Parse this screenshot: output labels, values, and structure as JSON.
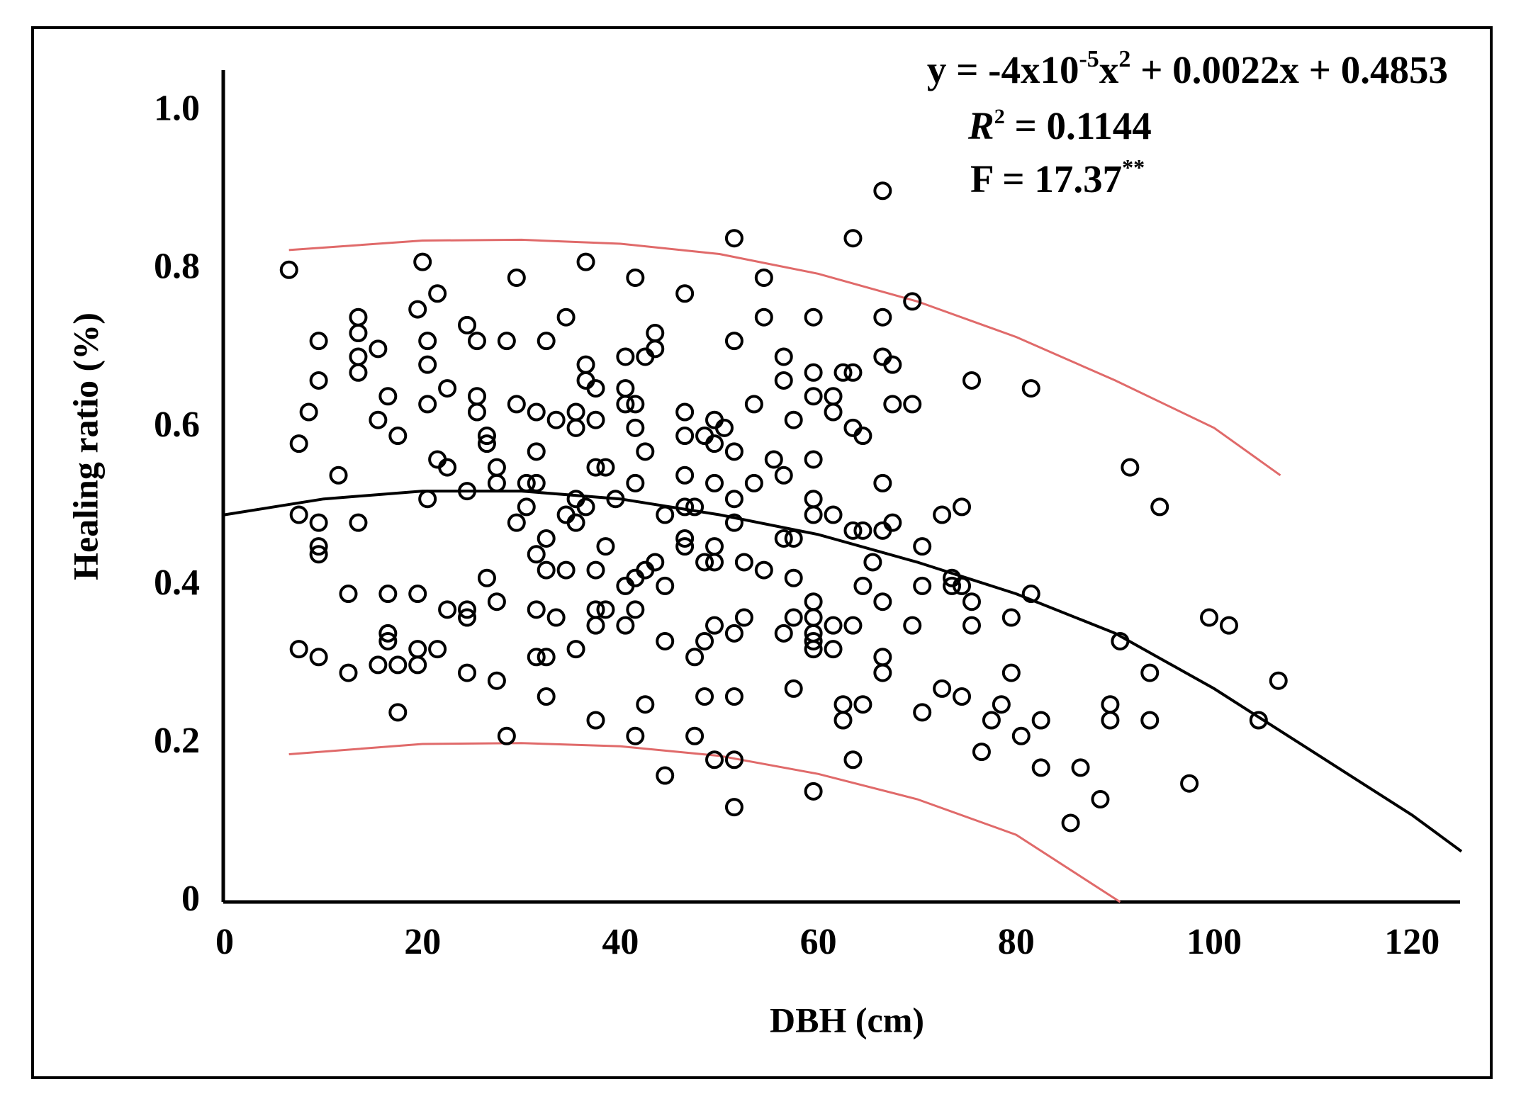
{
  "chart_data": {
    "type": "scatter",
    "x_label": "DBH (cm)",
    "y_label": "Healing ratio (%)",
    "equation": [
      "y = -4x10",
      "-5",
      "x",
      "2",
      " + 0.0022x + 0.4853"
    ],
    "r_squared": [
      "R",
      "2",
      " = 0.1144"
    ],
    "f_test": [
      "F = 17.37",
      "**"
    ],
    "xlim": [
      0,
      125
    ],
    "ylim": [
      0,
      1.05
    ],
    "xticks": [
      0,
      20,
      40,
      60,
      80,
      100,
      120
    ],
    "yticks": [
      0,
      0.2,
      0.4,
      0.6,
      0.8,
      {
        "value": 1,
        "label": "1.0"
      }
    ],
    "points": {
      "color": "#000000",
      "x": [
        6.5,
        7.5,
        7.5,
        7.5,
        8.5,
        9.5,
        9.5,
        9.5,
        9.5,
        9.5,
        9.5,
        11.5,
        12.5,
        12.5,
        13.5,
        13.5,
        13.5,
        13.5,
        13.5,
        15.5,
        15.5,
        15.5,
        16.5,
        16.5,
        16.5,
        16.5,
        17.5,
        17.5,
        17.5,
        19.5,
        19.5,
        19.5,
        19.5,
        20,
        20.5,
        20.5,
        20.5,
        20.5,
        21.5,
        21.5,
        21.5,
        22.5,
        22.5,
        22.5,
        24.5,
        24.5,
        24.5,
        24.5,
        24.5,
        25.5,
        25.5,
        25.5,
        26.5,
        26.5,
        26.5,
        27.5,
        27.5,
        27.5,
        27.5,
        28.5,
        28.5,
        29.5,
        29.5,
        29.5,
        30.5,
        30.5,
        31.5,
        31.5,
        31.5,
        31.5,
        31.5,
        31.5,
        32.5,
        32.5,
        32.5,
        32.5,
        32.5,
        33.5,
        33.5,
        34.5,
        34.5,
        34.5,
        35.5,
        35.5,
        35.5,
        35.5,
        35.5,
        36.5,
        36.5,
        36.5,
        36.5,
        37.5,
        37.5,
        37.5,
        37.5,
        37.5,
        37.5,
        37.5,
        38.5,
        38.5,
        38.5,
        39.5,
        40.5,
        40.5,
        40.5,
        40.5,
        40.5,
        41.5,
        41.5,
        41.5,
        41.5,
        41.5,
        41.5,
        41.5,
        42.5,
        42.5,
        42.5,
        42.5,
        43.5,
        43.5,
        43.5,
        44.5,
        44.5,
        44.5,
        44.5,
        46.5,
        46.5,
        46.5,
        46.5,
        46.5,
        46.5,
        46.5,
        47.5,
        47.5,
        47.5,
        48.5,
        48.5,
        48.5,
        48.5,
        49.5,
        49.5,
        49.5,
        49.5,
        49.5,
        49.5,
        49.5,
        50.5,
        51.5,
        51.5,
        51.5,
        51.5,
        51.5,
        51.5,
        51.5,
        51.5,
        51.5,
        52.5,
        52.5,
        53.5,
        53.5,
        54.5,
        54.5,
        54.5,
        55.5,
        56.5,
        56.5,
        56.5,
        56.5,
        56.5,
        57.5,
        57.5,
        57.5,
        57.5,
        57.5,
        59.5,
        59.5,
        59.5,
        59.5,
        59.5,
        59.5,
        59.5,
        59.5,
        59.5,
        59.5,
        59.5,
        59.5,
        61.5,
        61.5,
        61.5,
        61.5,
        61.5,
        62.5,
        62.5,
        62.5,
        63.5,
        63.5,
        63.5,
        63.5,
        63.5,
        63.5,
        64.5,
        64.5,
        64.5,
        64.5,
        65.5,
        66.5,
        66.5,
        66.5,
        66.5,
        66.5,
        66.5,
        66.5,
        66.5,
        67.5,
        67.5,
        67.5,
        69.5,
        69.5,
        69.5,
        70.5,
        70.5,
        70.5,
        72.5,
        72.5,
        73.5,
        73.5,
        74.5,
        74.5,
        74.5,
        75.5,
        75.5,
        75.5,
        76.5,
        77.5,
        78.5,
        79.5,
        79.5,
        80.5,
        81.5,
        81.5,
        82.5,
        82.5,
        85.5,
        86.5,
        88.5,
        89.5,
        89.5,
        90.5,
        91.5,
        93.5,
        93.5,
        94.5,
        97.5,
        99.5,
        101.5,
        104.5,
        106.5
      ],
      "values": [
        0.8,
        0.58,
        0.49,
        0.32,
        0.62,
        0.71,
        0.66,
        0.48,
        0.45,
        0.44,
        0.31,
        0.54,
        0.39,
        0.29,
        0.74,
        0.72,
        0.69,
        0.67,
        0.48,
        0.7,
        0.61,
        0.3,
        0.64,
        0.39,
        0.34,
        0.33,
        0.59,
        0.3,
        0.24,
        0.75,
        0.39,
        0.32,
        0.3,
        0.81,
        0.71,
        0.68,
        0.63,
        0.51,
        0.77,
        0.56,
        0.32,
        0.65,
        0.55,
        0.37,
        0.73,
        0.52,
        0.37,
        0.36,
        0.29,
        0.71,
        0.64,
        0.62,
        0.59,
        0.58,
        0.41,
        0.55,
        0.53,
        0.38,
        0.28,
        0.71,
        0.21,
        0.79,
        0.63,
        0.48,
        0.53,
        0.5,
        0.62,
        0.57,
        0.53,
        0.44,
        0.37,
        0.31,
        0.71,
        0.46,
        0.42,
        0.31,
        0.26,
        0.61,
        0.36,
        0.74,
        0.49,
        0.42,
        0.62,
        0.6,
        0.51,
        0.48,
        0.32,
        0.81,
        0.68,
        0.66,
        0.5,
        0.65,
        0.61,
        0.55,
        0.42,
        0.37,
        0.35,
        0.23,
        0.55,
        0.45,
        0.37,
        0.51,
        0.69,
        0.65,
        0.63,
        0.4,
        0.35,
        0.79,
        0.63,
        0.6,
        0.53,
        0.41,
        0.37,
        0.21,
        0.69,
        0.57,
        0.42,
        0.25,
        0.72,
        0.7,
        0.43,
        0.49,
        0.4,
        0.33,
        0.16,
        0.77,
        0.62,
        0.59,
        0.54,
        0.5,
        0.46,
        0.45,
        0.5,
        0.31,
        0.21,
        0.59,
        0.43,
        0.33,
        0.26,
        0.61,
        0.58,
        0.53,
        0.45,
        0.43,
        0.35,
        0.18,
        0.6,
        0.84,
        0.71,
        0.57,
        0.51,
        0.48,
        0.34,
        0.26,
        0.18,
        0.12,
        0.43,
        0.36,
        0.63,
        0.53,
        0.79,
        0.74,
        0.42,
        0.56,
        0.69,
        0.66,
        0.54,
        0.46,
        0.34,
        0.61,
        0.46,
        0.41,
        0.36,
        0.27,
        0.74,
        0.67,
        0.64,
        0.56,
        0.51,
        0.49,
        0.38,
        0.36,
        0.34,
        0.33,
        0.32,
        0.14,
        0.64,
        0.62,
        0.49,
        0.35,
        0.32,
        0.67,
        0.25,
        0.23,
        0.84,
        0.67,
        0.6,
        0.47,
        0.35,
        0.18,
        0.59,
        0.47,
        0.4,
        0.25,
        0.43,
        0.9,
        0.74,
        0.69,
        0.53,
        0.47,
        0.38,
        0.31,
        0.29,
        0.68,
        0.63,
        0.48,
        0.76,
        0.63,
        0.35,
        0.45,
        0.4,
        0.24,
        0.49,
        0.27,
        0.41,
        0.4,
        0.5,
        0.4,
        0.26,
        0.66,
        0.38,
        0.35,
        0.19,
        0.23,
        0.25,
        0.36,
        0.29,
        0.21,
        0.65,
        0.39,
        0.23,
        0.17,
        0.1,
        0.17,
        0.13,
        0.25,
        0.23,
        0.33,
        0.55,
        0.29,
        0.23,
        0.5,
        0.15,
        0.36,
        0.35,
        0.23,
        0.28
      ]
    },
    "fit_curve": {
      "color": "#000000",
      "x": [
        0,
        10,
        20,
        30,
        40,
        50,
        60,
        70,
        80,
        90,
        100,
        110,
        120,
        125
      ],
      "values": [
        0.49,
        0.51,
        0.52,
        0.52,
        0.51,
        0.49,
        0.465,
        0.43,
        0.39,
        0.34,
        0.27,
        0.19,
        0.11,
        0.064
      ]
    },
    "upper_band": {
      "color": "#e06a6a",
      "x": [
        6.5,
        20,
        30,
        40,
        50,
        60,
        70,
        80,
        90,
        100,
        106.7
      ],
      "values": [
        0.825,
        0.837,
        0.838,
        0.833,
        0.82,
        0.795,
        0.76,
        0.715,
        0.66,
        0.6,
        0.54
      ]
    },
    "lower_band": {
      "color": "#e06a6a",
      "x": [
        6.5,
        20,
        30,
        40,
        50,
        60,
        70,
        80,
        90.5
      ],
      "values": [
        0.187,
        0.2,
        0.201,
        0.197,
        0.185,
        0.162,
        0.13,
        0.085,
        0
      ]
    }
  }
}
